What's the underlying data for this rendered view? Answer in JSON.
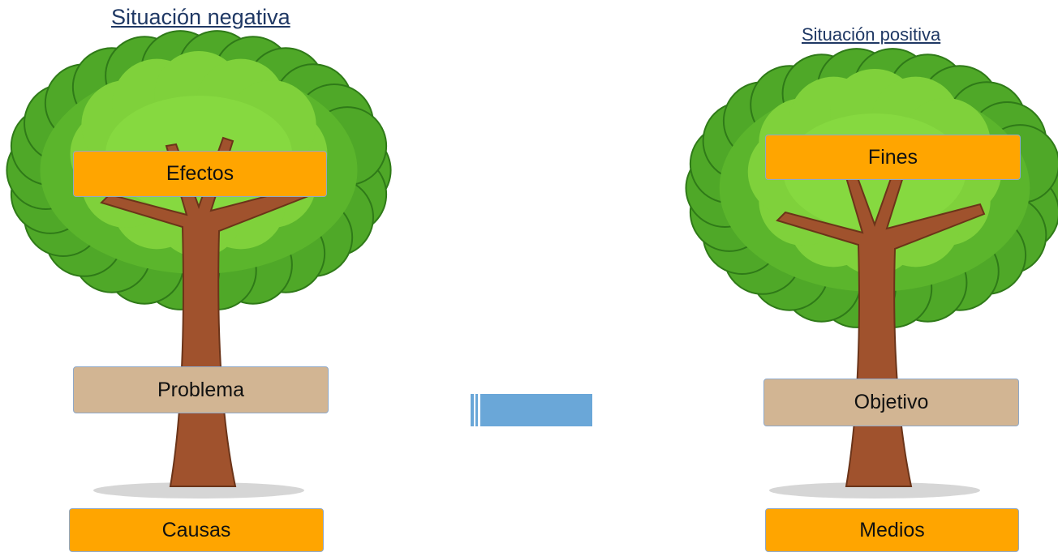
{
  "problem_tree": {
    "title": "Situación negativa",
    "effects": "Efectos",
    "problem": "Problema",
    "causes": "Causas"
  },
  "objective_tree": {
    "title": "Situación positiva",
    "ends": "Fines",
    "objective": "Objetivo",
    "means": "Medios"
  }
}
